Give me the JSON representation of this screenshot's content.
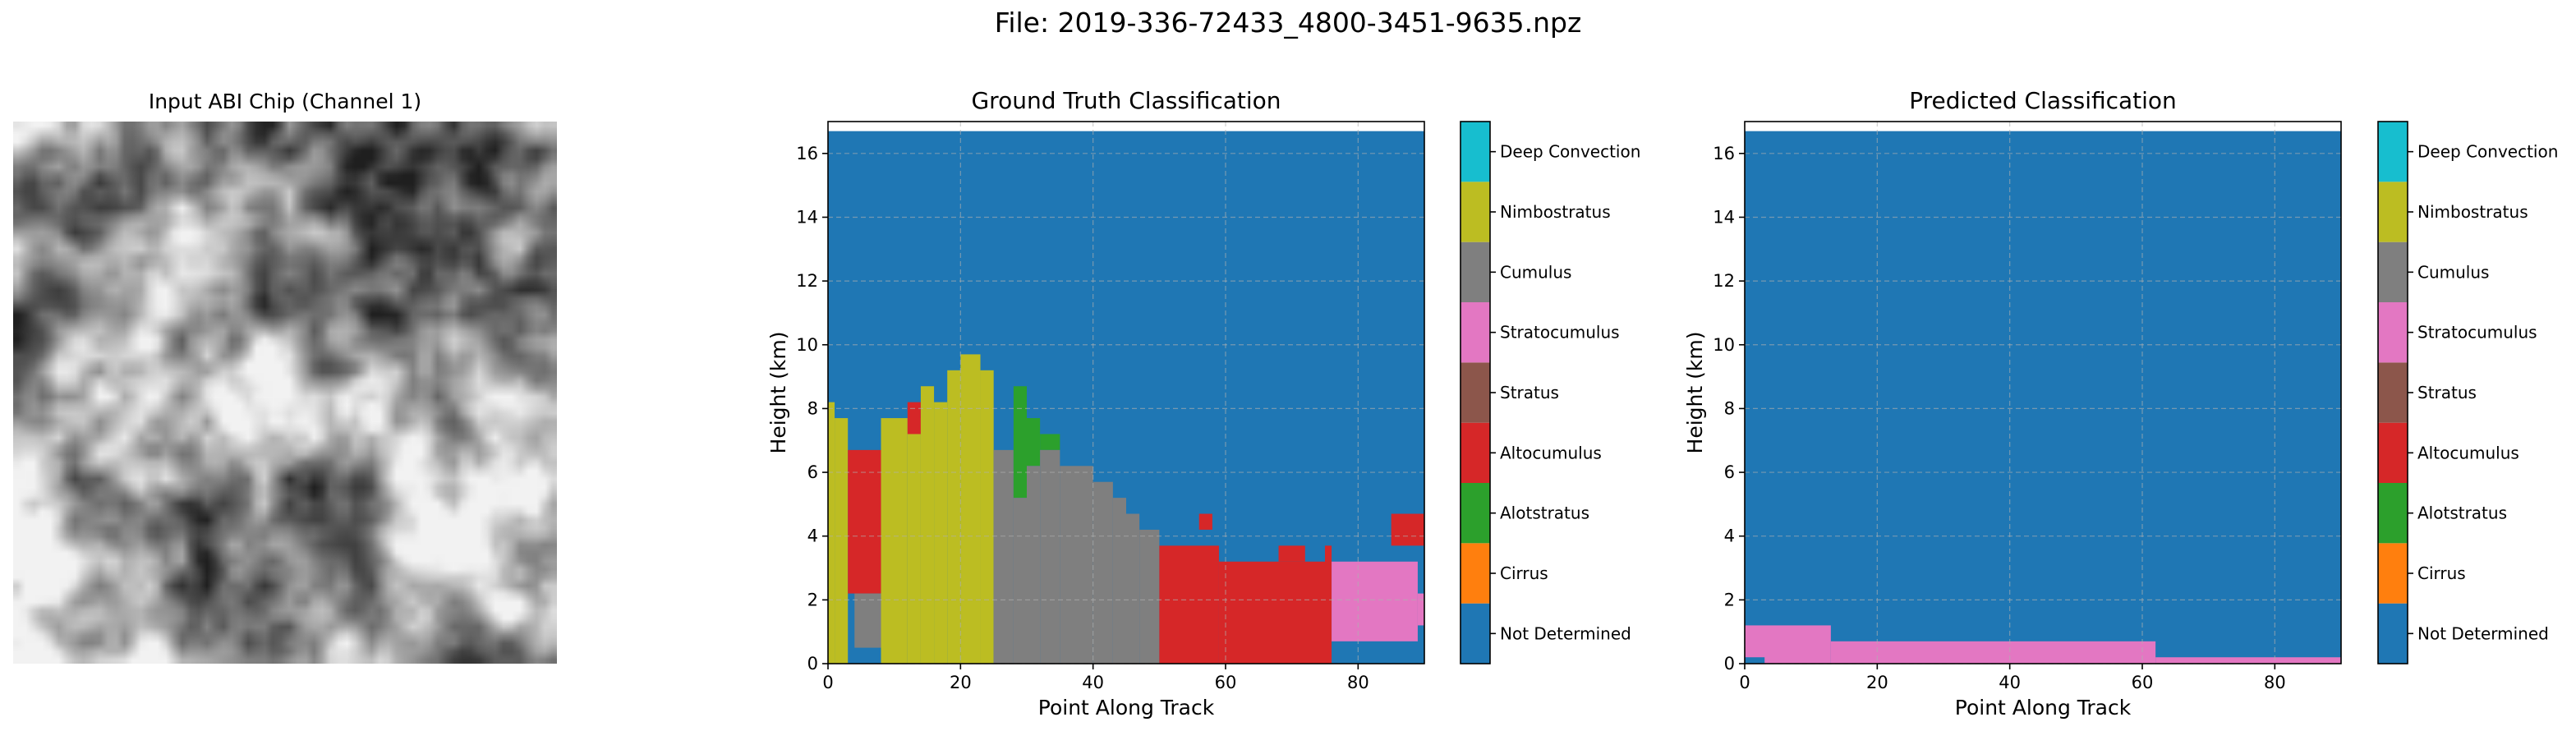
{
  "suptitle": "File: 2019-336-72433_4800-3451-9635.npz",
  "chip": {
    "title": "Input ABI Chip (Channel 1)"
  },
  "classes": [
    {
      "label": "Not Determined",
      "color": "#1f77b4"
    },
    {
      "label": "Cirrus",
      "color": "#ff7f0e"
    },
    {
      "label": "Alotstratus",
      "color": "#2ca02c"
    },
    {
      "label": "Altocumulus",
      "color": "#d62728"
    },
    {
      "label": "Stratus",
      "color": "#8c564b"
    },
    {
      "label": "Stratocumulus",
      "color": "#e377c2"
    },
    {
      "label": "Cumulus",
      "color": "#7f7f7f"
    },
    {
      "label": "Nimbostratus",
      "color": "#bcbd22"
    },
    {
      "label": "Deep Convection",
      "color": "#17becf"
    }
  ],
  "chart_data": [
    {
      "type": "heatmap",
      "title": "Ground Truth Classification",
      "xlabel": "Point Along Track",
      "ylabel": "Height (km)",
      "xlim": [
        0,
        90
      ],
      "ylim": [
        0,
        17
      ],
      "xticks": [
        "0",
        "20",
        "40",
        "60",
        "80"
      ],
      "yticks": [
        "0",
        "2",
        "4",
        "6",
        "8",
        "10",
        "12",
        "14",
        "16"
      ],
      "grid": true,
      "background_class": "Not Determined",
      "regions": [
        {
          "class": "Nimbostratus",
          "x": [
            0,
            1
          ],
          "y": [
            0,
            8.2
          ]
        },
        {
          "class": "Nimbostratus",
          "x": [
            1,
            3
          ],
          "y": [
            0,
            7.7
          ]
        },
        {
          "class": "Altocumulus",
          "x": [
            3,
            8
          ],
          "y": [
            2.2,
            6.7
          ]
        },
        {
          "class": "Cumulus",
          "x": [
            4,
            8
          ],
          "y": [
            0.5,
            2.2
          ]
        },
        {
          "class": "Nimbostratus",
          "x": [
            8,
            12
          ],
          "y": [
            0,
            7.7
          ]
        },
        {
          "class": "Nimbostratus",
          "x": [
            12,
            14
          ],
          "y": [
            0,
            7.7
          ]
        },
        {
          "class": "Altocumulus",
          "x": [
            12,
            14
          ],
          "y": [
            7.2,
            8.2
          ]
        },
        {
          "class": "Nimbostratus",
          "x": [
            14,
            16
          ],
          "y": [
            0,
            8.7
          ]
        },
        {
          "class": "Nimbostratus",
          "x": [
            16,
            18
          ],
          "y": [
            0,
            8.2
          ]
        },
        {
          "class": "Nimbostratus",
          "x": [
            18,
            20
          ],
          "y": [
            0,
            9.2
          ]
        },
        {
          "class": "Nimbostratus",
          "x": [
            20,
            23
          ],
          "y": [
            0,
            9.7
          ]
        },
        {
          "class": "Nimbostratus",
          "x": [
            23,
            25
          ],
          "y": [
            0,
            9.2
          ]
        },
        {
          "class": "Cumulus",
          "x": [
            25,
            28
          ],
          "y": [
            0,
            6.7
          ]
        },
        {
          "class": "Alotstratus",
          "x": [
            28,
            30
          ],
          "y": [
            5.2,
            8.7
          ]
        },
        {
          "class": "Cumulus",
          "x": [
            28,
            30
          ],
          "y": [
            0,
            5.2
          ]
        },
        {
          "class": "Alotstratus",
          "x": [
            30,
            32
          ],
          "y": [
            6.2,
            7.7
          ]
        },
        {
          "class": "Cumulus",
          "x": [
            30,
            32
          ],
          "y": [
            0,
            6.2
          ]
        },
        {
          "class": "Alotstratus",
          "x": [
            32,
            35
          ],
          "y": [
            6.7,
            7.2
          ]
        },
        {
          "class": "Cumulus",
          "x": [
            32,
            35
          ],
          "y": [
            0,
            6.7
          ]
        },
        {
          "class": "Cumulus",
          "x": [
            35,
            40
          ],
          "y": [
            0,
            6.2
          ]
        },
        {
          "class": "Cumulus",
          "x": [
            40,
            43
          ],
          "y": [
            0,
            5.7
          ]
        },
        {
          "class": "Cumulus",
          "x": [
            43,
            45
          ],
          "y": [
            0,
            5.2
          ]
        },
        {
          "class": "Cumulus",
          "x": [
            45,
            47
          ],
          "y": [
            0,
            4.7
          ]
        },
        {
          "class": "Cumulus",
          "x": [
            47,
            50
          ],
          "y": [
            0,
            4.2
          ]
        },
        {
          "class": "Altocumulus",
          "x": [
            50,
            59
          ],
          "y": [
            0,
            3.7
          ]
        },
        {
          "class": "Altocumulus",
          "x": [
            56,
            58
          ],
          "y": [
            4.2,
            4.7
          ]
        },
        {
          "class": "Altocumulus",
          "x": [
            59,
            75
          ],
          "y": [
            0,
            3.2
          ]
        },
        {
          "class": "Altocumulus",
          "x": [
            68,
            72
          ],
          "y": [
            3.2,
            3.7
          ]
        },
        {
          "class": "Altocumulus",
          "x": [
            75,
            76
          ],
          "y": [
            0,
            3.7
          ]
        },
        {
          "class": "Stratocumulus",
          "x": [
            76,
            89
          ],
          "y": [
            0.7,
            3.2
          ]
        },
        {
          "class": "Altocumulus",
          "x": [
            85,
            90
          ],
          "y": [
            3.7,
            4.7
          ]
        },
        {
          "class": "Stratocumulus",
          "x": [
            89,
            90
          ],
          "y": [
            1.2,
            2.2
          ]
        }
      ]
    },
    {
      "type": "heatmap",
      "title": "Predicted Classification",
      "xlabel": "Point Along Track",
      "ylabel": "Height (km)",
      "xlim": [
        0,
        90
      ],
      "ylim": [
        0,
        17
      ],
      "xticks": [
        "0",
        "20",
        "40",
        "60",
        "80"
      ],
      "yticks": [
        "0",
        "2",
        "4",
        "6",
        "8",
        "10",
        "12",
        "14",
        "16"
      ],
      "grid": true,
      "background_class": "Not Determined",
      "regions": [
        {
          "class": "Stratocumulus",
          "x": [
            0,
            13
          ],
          "y": [
            0,
            1.2
          ]
        },
        {
          "class": "Stratocumulus",
          "x": [
            13,
            62
          ],
          "y": [
            0,
            0.7
          ]
        },
        {
          "class": "Stratocumulus",
          "x": [
            62,
            90
          ],
          "y": [
            0,
            0.2
          ]
        },
        {
          "class": "Not Determined",
          "x": [
            0,
            3
          ],
          "y": [
            0,
            0.2
          ]
        }
      ]
    }
  ]
}
